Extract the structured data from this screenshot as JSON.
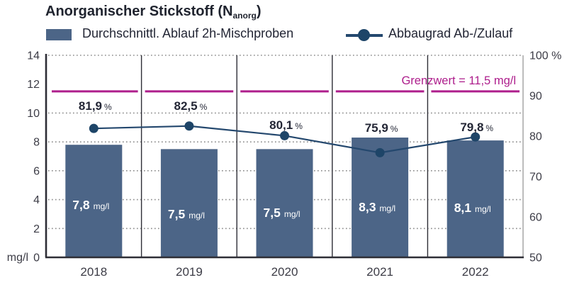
{
  "title": {
    "main": "Anorganischer Stickstoff (N",
    "sub": "anorg",
    "end": ")"
  },
  "legend": {
    "bar_label": "Durchschnittl. Ablauf 2h-Mischproben",
    "line_label": "Abbaugrad Ab-/Zulauf"
  },
  "colors": {
    "bar": "#4c6587",
    "line": "#24486e",
    "marker": "#1e4568",
    "limit": "#ae1e8c",
    "text_dark": "#232635",
    "axis_text": "#3c3c46",
    "grid": "#8a8a8a",
    "axis_dark": "#2e2e36",
    "axis_right": "#a6a6a6",
    "bar_value_text": "#ffffff"
  },
  "chart_data": {
    "type": "bar+line",
    "categories": [
      "2018",
      "2019",
      "2020",
      "2021",
      "2022"
    ],
    "series": [
      {
        "name": "Durchschnittl. Ablauf 2h-Mischproben",
        "type": "bar",
        "axis": "left",
        "unit": "mg/l",
        "values": [
          7.8,
          7.5,
          7.5,
          8.3,
          8.1
        ],
        "value_labels": [
          "7,8",
          "7,5",
          "7,5",
          "8,3",
          "8,1"
        ]
      },
      {
        "name": "Abbaugrad Ab-/Zulauf",
        "type": "line",
        "axis": "right",
        "unit": "%",
        "values": [
          81.9,
          82.5,
          80.1,
          75.9,
          79.8
        ],
        "value_labels": [
          "81,9",
          "82,5",
          "80,1",
          "75,9",
          "79,8"
        ]
      }
    ],
    "threshold": {
      "value": 11.5,
      "label": "Grenzwert = 11,5 mg/l",
      "axis": "left"
    },
    "left_axis": {
      "unit": "mg/l",
      "min": 0,
      "max": 14,
      "ticks": [
        14,
        12,
        10,
        8,
        6,
        4,
        2,
        0
      ],
      "gridlines": [
        14,
        10,
        8,
        6,
        4,
        2
      ]
    },
    "right_axis": {
      "min": 50,
      "max": 100,
      "ticks": [
        {
          "value": 100,
          "label": "100 %"
        },
        {
          "value": 90,
          "label": "90"
        },
        {
          "value": 80,
          "label": "80"
        },
        {
          "value": 70,
          "label": "70"
        },
        {
          "value": 60,
          "label": "60"
        },
        {
          "value": 50,
          "label": "50"
        }
      ]
    },
    "grid": "dotted-horizontal",
    "legend_position": "top"
  }
}
